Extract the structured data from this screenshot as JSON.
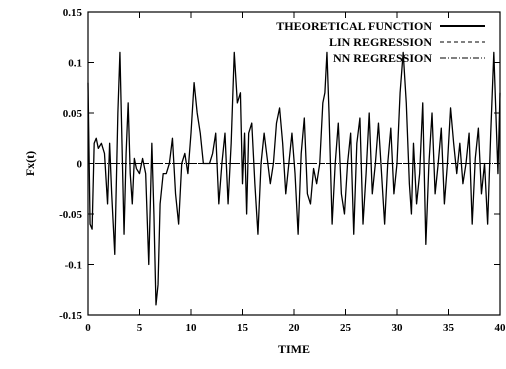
{
  "chart_data": {
    "type": "line",
    "title": "",
    "xlabel": "TIME",
    "ylabel": "Fx(t)",
    "xlim": [
      0,
      40
    ],
    "ylim": [
      -0.15,
      0.15
    ],
    "xticks": [
      "0",
      "5",
      "10",
      "15",
      "20",
      "25",
      "30",
      "35",
      "40"
    ],
    "yticks": [
      "0.15",
      "0.1",
      "0.05",
      "0",
      "-0.05",
      "-0.1",
      "-0.15"
    ],
    "grid": false,
    "legend_position": "top-right",
    "series": [
      {
        "name": "THEORETICAL FUNCTION",
        "style": "solid",
        "x": [
          0,
          0.2,
          0.4,
          0.6,
          0.8,
          1.0,
          1.3,
          1.6,
          1.9,
          2.1,
          2.3,
          2.6,
          2.9,
          3.1,
          3.3,
          3.5,
          3.7,
          3.9,
          4.1,
          4.3,
          4.5,
          4.7,
          5.0,
          5.3,
          5.6,
          5.9,
          6.2,
          6.4,
          6.6,
          6.8,
          7.0,
          7.3,
          7.6,
          7.9,
          8.2,
          8.5,
          8.8,
          9.1,
          9.4,
          9.7,
          10.0,
          10.3,
          10.6,
          10.9,
          11.2,
          11.5,
          11.8,
          12.1,
          12.4,
          12.7,
          13.0,
          13.3,
          13.6,
          13.9,
          14.2,
          14.5,
          14.8,
          15.0,
          15.2,
          15.4,
          15.6,
          15.9,
          16.2,
          16.5,
          16.8,
          17.1,
          17.4,
          17.7,
          18.0,
          18.3,
          18.6,
          18.9,
          19.2,
          19.5,
          19.8,
          20.1,
          20.4,
          20.7,
          21.0,
          21.3,
          21.6,
          21.9,
          22.2,
          22.5,
          22.8,
          23.0,
          23.2,
          23.4,
          23.7,
          24.0,
          24.3,
          24.6,
          24.9,
          25.2,
          25.5,
          25.8,
          26.1,
          26.4,
          26.7,
          27.0,
          27.3,
          27.6,
          27.9,
          28.2,
          28.5,
          28.8,
          29.1,
          29.4,
          29.7,
          30.0,
          30.3,
          30.6,
          30.9,
          31.2,
          31.4,
          31.6,
          31.9,
          32.2,
          32.5,
          32.8,
          33.1,
          33.4,
          33.7,
          34.0,
          34.3,
          34.6,
          34.9,
          35.2,
          35.5,
          35.8,
          36.1,
          36.4,
          36.7,
          37.0,
          37.3,
          37.6,
          37.9,
          38.2,
          38.5,
          38.8,
          39.1,
          39.4,
          39.6,
          39.8,
          40.0
        ],
        "y": [
          0.08,
          -0.06,
          -0.065,
          0.02,
          0.025,
          0.015,
          0.02,
          0.01,
          -0.04,
          0.02,
          -0.03,
          -0.09,
          0.05,
          0.11,
          0.02,
          -0.07,
          0.01,
          0.06,
          -0.01,
          -0.04,
          0.005,
          -0.005,
          -0.01,
          0.005,
          -0.01,
          -0.1,
          0.02,
          -0.05,
          -0.14,
          -0.12,
          -0.04,
          -0.01,
          -0.01,
          0.0,
          0.025,
          -0.03,
          -0.06,
          0.0,
          0.01,
          -0.01,
          0.03,
          0.08,
          0.05,
          0.03,
          0.0,
          0.0,
          0.0,
          0.01,
          0.03,
          -0.04,
          0.0,
          0.03,
          -0.04,
          0.02,
          0.11,
          0.06,
          0.07,
          -0.02,
          0.03,
          -0.05,
          0.03,
          0.04,
          -0.02,
          -0.07,
          0.0,
          0.03,
          0.005,
          -0.02,
          0.0,
          0.04,
          0.055,
          0.02,
          -0.03,
          0.0,
          0.03,
          -0.01,
          -0.07,
          0.01,
          0.045,
          -0.03,
          -0.04,
          -0.005,
          -0.02,
          0.0,
          0.06,
          0.07,
          0.11,
          0.05,
          -0.06,
          0.0,
          0.04,
          -0.03,
          -0.05,
          0.0,
          0.03,
          -0.07,
          0.02,
          0.045,
          -0.06,
          -0.01,
          0.05,
          -0.03,
          0.0,
          0.04,
          -0.01,
          -0.06,
          0.0,
          0.035,
          -0.03,
          0.0,
          0.07,
          0.11,
          0.06,
          -0.02,
          -0.05,
          0.02,
          -0.04,
          -0.01,
          0.06,
          -0.08,
          0.0,
          0.05,
          -0.03,
          0.0,
          0.035,
          -0.04,
          0.0,
          0.055,
          0.02,
          -0.01,
          0.02,
          -0.02,
          0.0,
          0.03,
          -0.06,
          0.005,
          0.035,
          -0.03,
          0.0,
          -0.06,
          0.03,
          0.11,
          0.05,
          -0.01,
          0.07
        ]
      },
      {
        "name": "LIN REGRESSION",
        "style": "dashed",
        "x": [
          0,
          40
        ],
        "y": [
          0.0,
          0.0
        ]
      },
      {
        "name": "NN REGRESSION",
        "style": "dashdot",
        "x": [
          0,
          40
        ],
        "y": [
          0.0,
          0.0
        ]
      }
    ]
  }
}
